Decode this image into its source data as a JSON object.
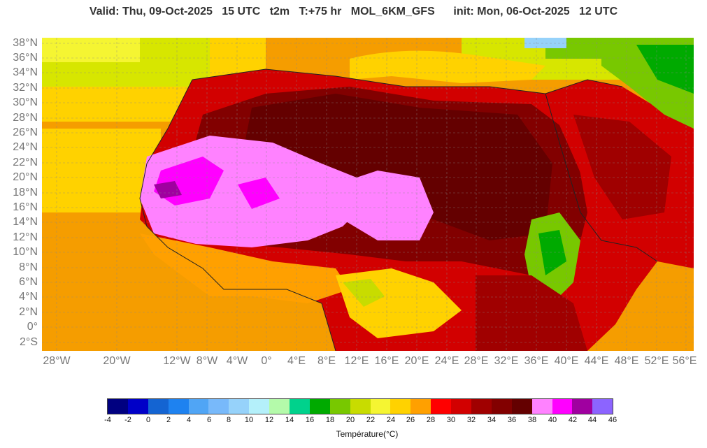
{
  "header": {
    "title": "Valid: Thu, 09-Oct-2025   15 UTC   t2m   T:+75 hr   MOL_6KM_GFS      init: Mon, 06-Oct-2025   12 UTC"
  },
  "axes": {
    "lat_labels": [
      "38°N",
      "36°N",
      "34°N",
      "32°N",
      "30°N",
      "28°N",
      "26°N",
      "24°N",
      "22°N",
      "20°N",
      "18°N",
      "16°N",
      "14°N",
      "12°N",
      "10°N",
      "8°N",
      "6°N",
      "4°N",
      "2°N",
      "0°",
      "2°S"
    ],
    "lon_labels": [
      "28°W",
      "20°W",
      "12°W",
      "8°W",
      "4°W",
      "0°",
      "4°E",
      "8°E",
      "12°E",
      "16°E",
      "20°E",
      "24°E",
      "28°E",
      "32°E",
      "36°E",
      "40°E",
      "44°E",
      "48°E",
      "52°E",
      "56°E"
    ]
  },
  "legend": {
    "title": "Température(°C)",
    "ticks": [
      "-4",
      "-2",
      "0",
      "2",
      "4",
      "6",
      "8",
      "10",
      "12",
      "14",
      "16",
      "18",
      "20",
      "22",
      "24",
      "26",
      "28",
      "30",
      "32",
      "34",
      "36",
      "38",
      "40",
      "42",
      "44",
      "46"
    ],
    "colors": [
      "#000080",
      "#0000c8",
      "#1464d2",
      "#1e82f0",
      "#50a5f5",
      "#78b9fa",
      "#96d2fa",
      "#b4f0fa",
      "#b4faaa",
      "#00d28c",
      "#00aa00",
      "#78c800",
      "#c8dc00",
      "#f5f532",
      "#ffd200",
      "#ffa000",
      "#ff0000",
      "#d20000",
      "#a00000",
      "#820000",
      "#640000",
      "#ff82ff",
      "#ff00ff",
      "#a000a0",
      "#8c64ff"
    ]
  }
}
